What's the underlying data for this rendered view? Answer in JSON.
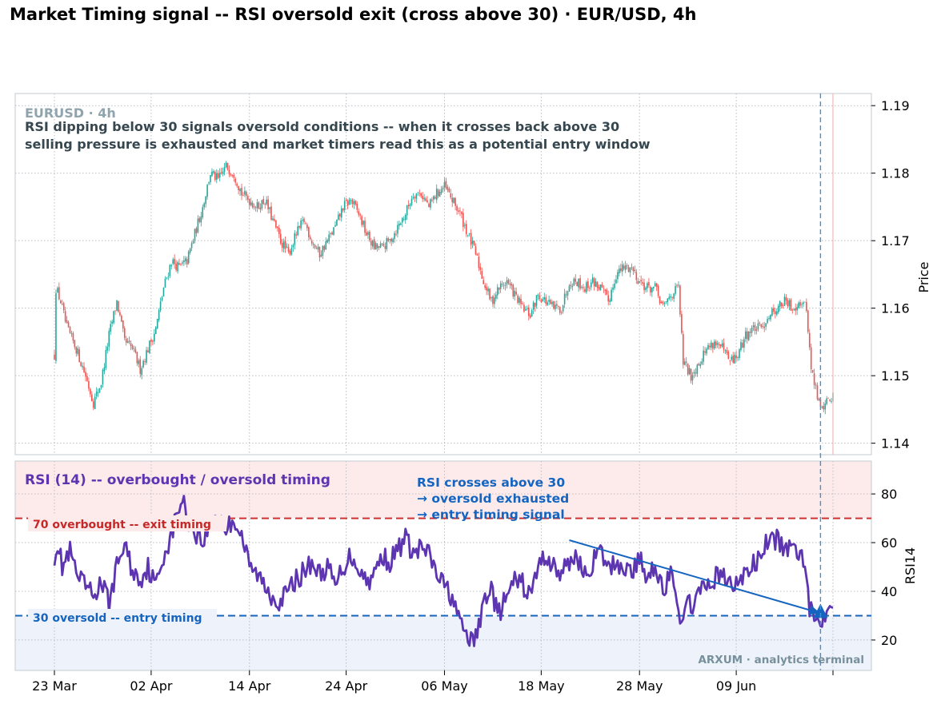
{
  "title": "Market Timing signal -- RSI oversold exit (cross above 30)  ·  EUR/USD, 4h",
  "chart_data": [
    {
      "type": "candlestick",
      "watermark": "EURUSD · 4h",
      "annotation_lines": [
        "RSI dipping below 30 signals oversold conditions -- when it crosses back above 30",
        "selling pressure is exhausted and market timers read this as a potential entry window"
      ],
      "ylabel": "Price",
      "ylim": [
        1.1383,
        1.1918
      ],
      "yticks": [
        "1.14",
        "1.15",
        "1.16",
        "1.17",
        "1.18",
        "1.19"
      ],
      "xticks": [
        "23 Mar",
        "02 Apr",
        "14 Apr",
        "24 Apr",
        "06 May",
        "18 May",
        "28 May",
        "09 Jun"
      ],
      "up_color": "#26a69a",
      "down_color": "#ef5350",
      "grid": true,
      "close_path_keypoints": [
        [
          0,
          1.153
        ],
        [
          1,
          1.163
        ],
        [
          4,
          1.161
        ],
        [
          8,
          1.157
        ],
        [
          14,
          1.154
        ],
        [
          20,
          1.15
        ],
        [
          25,
          1.146
        ],
        [
          30,
          1.149
        ],
        [
          35,
          1.156
        ],
        [
          40,
          1.161
        ],
        [
          45,
          1.155
        ],
        [
          50,
          1.154
        ],
        [
          55,
          1.151
        ],
        [
          60,
          1.154
        ],
        [
          65,
          1.157
        ],
        [
          70,
          1.163
        ],
        [
          75,
          1.167
        ],
        [
          80,
          1.166
        ],
        [
          85,
          1.167
        ],
        [
          90,
          1.171
        ],
        [
          95,
          1.175
        ],
        [
          100,
          1.18
        ],
        [
          105,
          1.179
        ],
        [
          110,
          1.181
        ],
        [
          115,
          1.18
        ],
        [
          120,
          1.177
        ],
        [
          125,
          1.176
        ],
        [
          130,
          1.175
        ],
        [
          135,
          1.176
        ],
        [
          140,
          1.173
        ],
        [
          145,
          1.17
        ],
        [
          150,
          1.168
        ],
        [
          155,
          1.171
        ],
        [
          160,
          1.173
        ],
        [
          165,
          1.17
        ],
        [
          170,
          1.168
        ],
        [
          175,
          1.17
        ],
        [
          180,
          1.172
        ],
        [
          185,
          1.175
        ],
        [
          190,
          1.176
        ],
        [
          195,
          1.174
        ],
        [
          200,
          1.171
        ],
        [
          205,
          1.169
        ],
        [
          210,
          1.169
        ],
        [
          215,
          1.17
        ],
        [
          220,
          1.172
        ],
        [
          225,
          1.174
        ],
        [
          230,
          1.177
        ],
        [
          235,
          1.177
        ],
        [
          240,
          1.175
        ],
        [
          245,
          1.177
        ],
        [
          250,
          1.178
        ],
        [
          255,
          1.176
        ],
        [
          260,
          1.174
        ],
        [
          265,
          1.171
        ],
        [
          270,
          1.168
        ],
        [
          275,
          1.164
        ],
        [
          280,
          1.161
        ],
        [
          285,
          1.163
        ],
        [
          290,
          1.164
        ],
        [
          295,
          1.162
        ],
        [
          300,
          1.16
        ],
        [
          305,
          1.159
        ],
        [
          310,
          1.162
        ],
        [
          315,
          1.161
        ],
        [
          320,
          1.16
        ],
        [
          325,
          1.16
        ],
        [
          330,
          1.164
        ],
        [
          335,
          1.164
        ],
        [
          340,
          1.163
        ],
        [
          345,
          1.164
        ],
        [
          350,
          1.163
        ],
        [
          355,
          1.161
        ],
        [
          360,
          1.165
        ],
        [
          365,
          1.166
        ],
        [
          370,
          1.166
        ],
        [
          375,
          1.164
        ],
        [
          380,
          1.163
        ],
        [
          385,
          1.163
        ],
        [
          390,
          1.16
        ],
        [
          395,
          1.162
        ],
        [
          400,
          1.163
        ],
        [
          403,
          1.152
        ],
        [
          408,
          1.15
        ],
        [
          413,
          1.152
        ],
        [
          418,
          1.154
        ],
        [
          423,
          1.155
        ],
        [
          428,
          1.154
        ],
        [
          433,
          1.152
        ],
        [
          438,
          1.153
        ],
        [
          443,
          1.156
        ],
        [
          448,
          1.157
        ],
        [
          453,
          1.157
        ],
        [
          458,
          1.159
        ],
        [
          463,
          1.16
        ],
        [
          468,
          1.161
        ],
        [
          473,
          1.16
        ],
        [
          478,
          1.161
        ],
        [
          482,
          1.16
        ],
        [
          485,
          1.151
        ],
        [
          488,
          1.148
        ],
        [
          491,
          1.145
        ],
        [
          494,
          1.146
        ],
        [
          499,
          1.147
        ]
      ]
    },
    {
      "type": "line",
      "title": "RSI (14) -- overbought / oversold timing",
      "ylabel": "RSI14",
      "ylim": [
        7.5,
        93.5
      ],
      "yticks": [
        "20",
        "40",
        "60",
        "80"
      ],
      "series": [
        {
          "keypoints": [
            [
              0,
              55
            ],
            [
              2,
              60
            ],
            [
              5,
              50
            ],
            [
              10,
              56
            ],
            [
              15,
              45
            ],
            [
              20,
              42
            ],
            [
              25,
              38
            ],
            [
              30,
              44
            ],
            [
              35,
              35
            ],
            [
              40,
              50
            ],
            [
              45,
              60
            ],
            [
              50,
              48
            ],
            [
              55,
              45
            ],
            [
              60,
              50
            ],
            [
              65,
              42
            ],
            [
              70,
              55
            ],
            [
              75,
              63
            ],
            [
              80,
              75
            ],
            [
              82,
              78
            ],
            [
              85,
              70
            ],
            [
              90,
              65
            ],
            [
              95,
              60
            ],
            [
              100,
              68
            ],
            [
              105,
              72
            ],
            [
              110,
              65
            ],
            [
              115,
              70
            ],
            [
              120,
              63
            ],
            [
              125,
              50
            ],
            [
              130,
              47
            ],
            [
              135,
              42
            ],
            [
              140,
              38
            ],
            [
              145,
              36
            ],
            [
              150,
              40
            ],
            [
              155,
              45
            ],
            [
              160,
              48
            ],
            [
              165,
              52
            ],
            [
              170,
              47
            ],
            [
              175,
              50
            ],
            [
              180,
              42
            ],
            [
              185,
              50
            ],
            [
              190,
              55
            ],
            [
              195,
              50
            ],
            [
              200,
              44
            ],
            [
              205,
              47
            ],
            [
              210,
              55
            ],
            [
              215,
              52
            ],
            [
              220,
              57
            ],
            [
              225,
              62
            ],
            [
              230,
              55
            ],
            [
              235,
              58
            ],
            [
              240,
              55
            ],
            [
              245,
              47
            ],
            [
              250,
              42
            ],
            [
              255,
              38
            ],
            [
              260,
              26
            ],
            [
              265,
              22
            ],
            [
              268,
              18
            ],
            [
              272,
              25
            ],
            [
              276,
              38
            ],
            [
              280,
              42
            ],
            [
              284,
              30
            ],
            [
              288,
              35
            ],
            [
              292,
              40
            ],
            [
              296,
              45
            ],
            [
              300,
              43
            ],
            [
              305,
              38
            ],
            [
              310,
              50
            ],
            [
              315,
              55
            ],
            [
              320,
              50
            ],
            [
              325,
              47
            ],
            [
              330,
              52
            ],
            [
              335,
              55
            ],
            [
              340,
              46
            ],
            [
              345,
              52
            ],
            [
              350,
              56
            ],
            [
              355,
              49
            ],
            [
              360,
              52
            ],
            [
              365,
              50
            ],
            [
              370,
              48
            ],
            [
              375,
              53
            ],
            [
              380,
              46
            ],
            [
              385,
              52
            ],
            [
              390,
              40
            ],
            [
              395,
              47
            ],
            [
              400,
              30
            ],
            [
              405,
              33
            ],
            [
              410,
              36
            ],
            [
              415,
              40
            ],
            [
              420,
              43
            ],
            [
              425,
              47
            ],
            [
              430,
              45
            ],
            [
              435,
              42
            ],
            [
              440,
              45
            ],
            [
              445,
              49
            ],
            [
              450,
              52
            ],
            [
              455,
              58
            ],
            [
              460,
              62
            ],
            [
              465,
              60
            ],
            [
              470,
              56
            ],
            [
              475,
              58
            ],
            [
              480,
              54
            ],
            [
              482,
              50
            ],
            [
              484,
              34
            ],
            [
              487,
              29
            ],
            [
              490,
              28
            ],
            [
              493,
              30
            ],
            [
              496,
              36
            ],
            [
              499,
              37
            ]
          ]
        }
      ],
      "bands": [
        {
          "label": "overbought zone",
          "y_from": 70,
          "y_to": 93.5,
          "color": "#fdebeb"
        },
        {
          "label": "oversold zone",
          "y_from": 7.5,
          "y_to": 30,
          "color": "#eef3fb"
        }
      ],
      "lines": [
        {
          "y": 70,
          "label": "70  overbought -- exit timing",
          "color": "#d32f2f"
        },
        {
          "y": 30,
          "label": "30  oversold -- entry timing",
          "color": "#1565c0"
        }
      ],
      "annotation": {
        "lines": [
          "RSI crosses above 30",
          "→ oversold exhausted",
          "→ entry timing signal"
        ],
        "color": "#1565c0",
        "arrow_from": [
          330,
          61
        ],
        "arrow_to": [
          491,
          31
        ]
      },
      "signal_marker": {
        "x": 491,
        "y": 31,
        "shape": "triangle-up"
      },
      "signal_vline_x": 491,
      "footer": "ARXUM · analytics terminal"
    }
  ],
  "colors": {
    "rsi_line": "#5e35b1",
    "price_text": "#37474f",
    "watermark": "#90a4ae",
    "footer_text": "#78909c",
    "signal": "#1565c0"
  }
}
